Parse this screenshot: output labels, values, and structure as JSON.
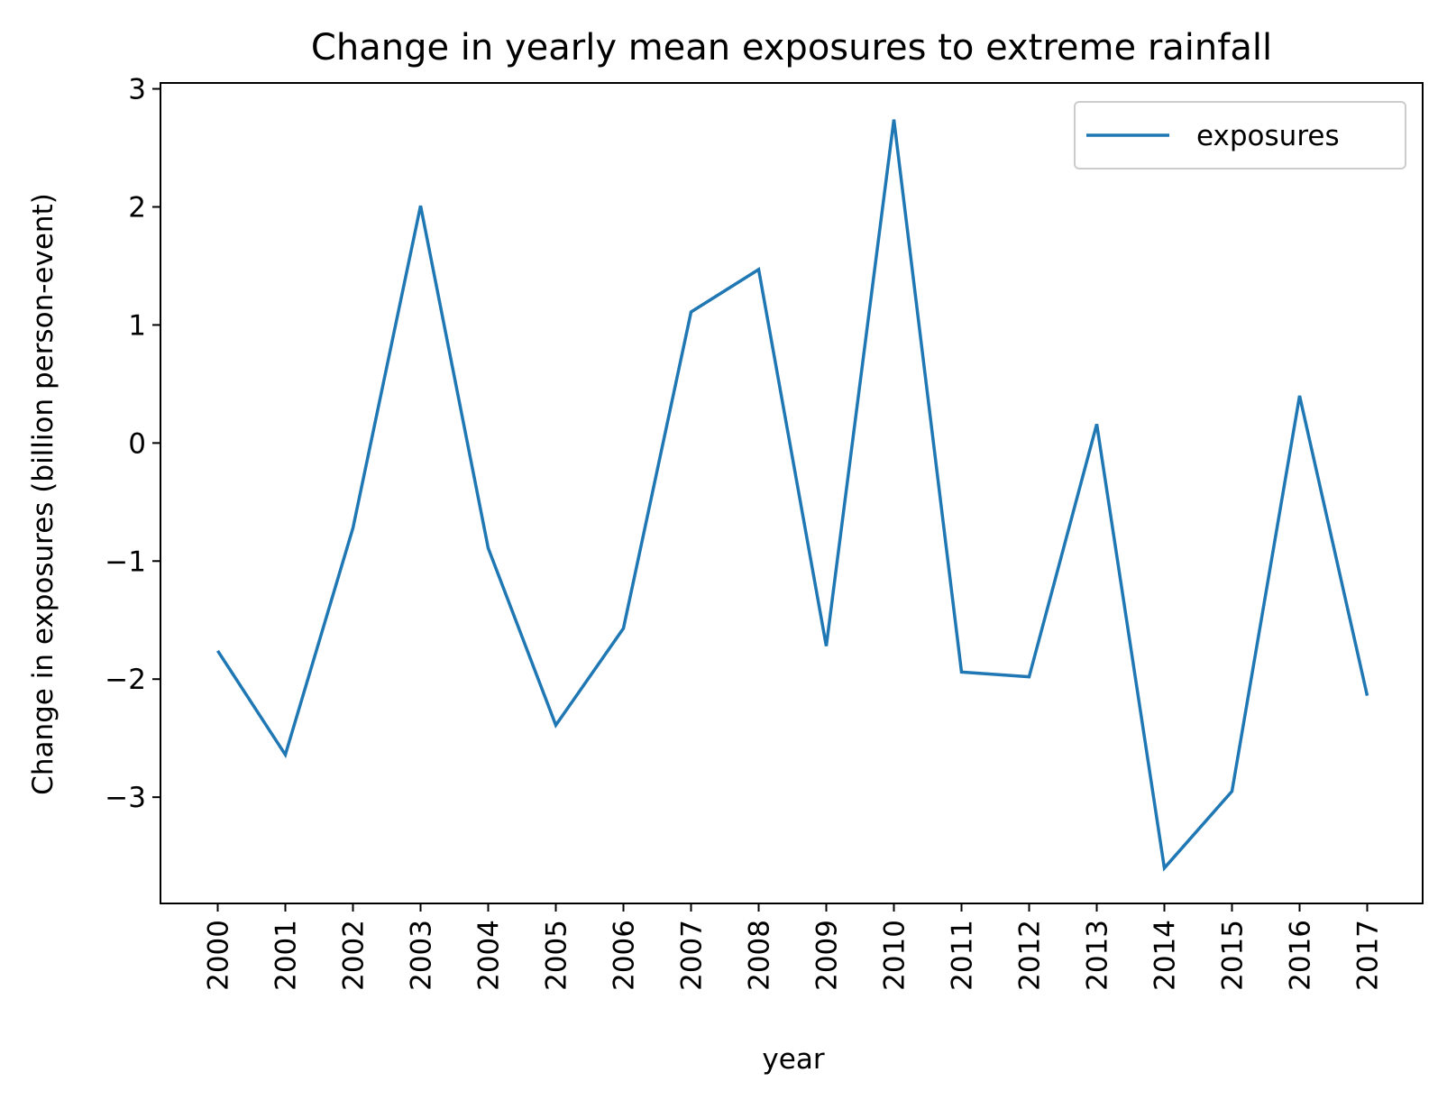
{
  "colors": {
    "series": "#1f77b4",
    "axes": "#000000",
    "legend_border": "#cccccc",
    "background": "#ffffff"
  },
  "chart_data": {
    "type": "line",
    "title": "Change in yearly mean exposures to extreme rainfall",
    "xlabel": "year",
    "ylabel": "Change in exposures (billion person-event)",
    "x": [
      "2000",
      "2001",
      "2002",
      "2003",
      "2004",
      "2005",
      "2006",
      "2007",
      "2008",
      "2009",
      "2010",
      "2011",
      "2012",
      "2013",
      "2014",
      "2015",
      "2016",
      "2017"
    ],
    "series": [
      {
        "name": "exposures",
        "values": [
          -1.76,
          -2.64,
          -0.72,
          2.01,
          -0.89,
          -2.39,
          -1.57,
          1.11,
          1.47,
          -1.72,
          2.74,
          -1.94,
          -1.98,
          0.16,
          -3.6,
          -2.95,
          0.4,
          -2.14
        ]
      }
    ],
    "ylim": [
      -3.9,
      3.05
    ],
    "yticks": [
      "3",
      "2",
      "1",
      "0",
      "−1",
      "−2",
      "−3"
    ],
    "ytick_values": [
      3,
      2,
      1,
      0,
      -1,
      -2,
      -3
    ],
    "grid": false,
    "legend": "top-right"
  }
}
